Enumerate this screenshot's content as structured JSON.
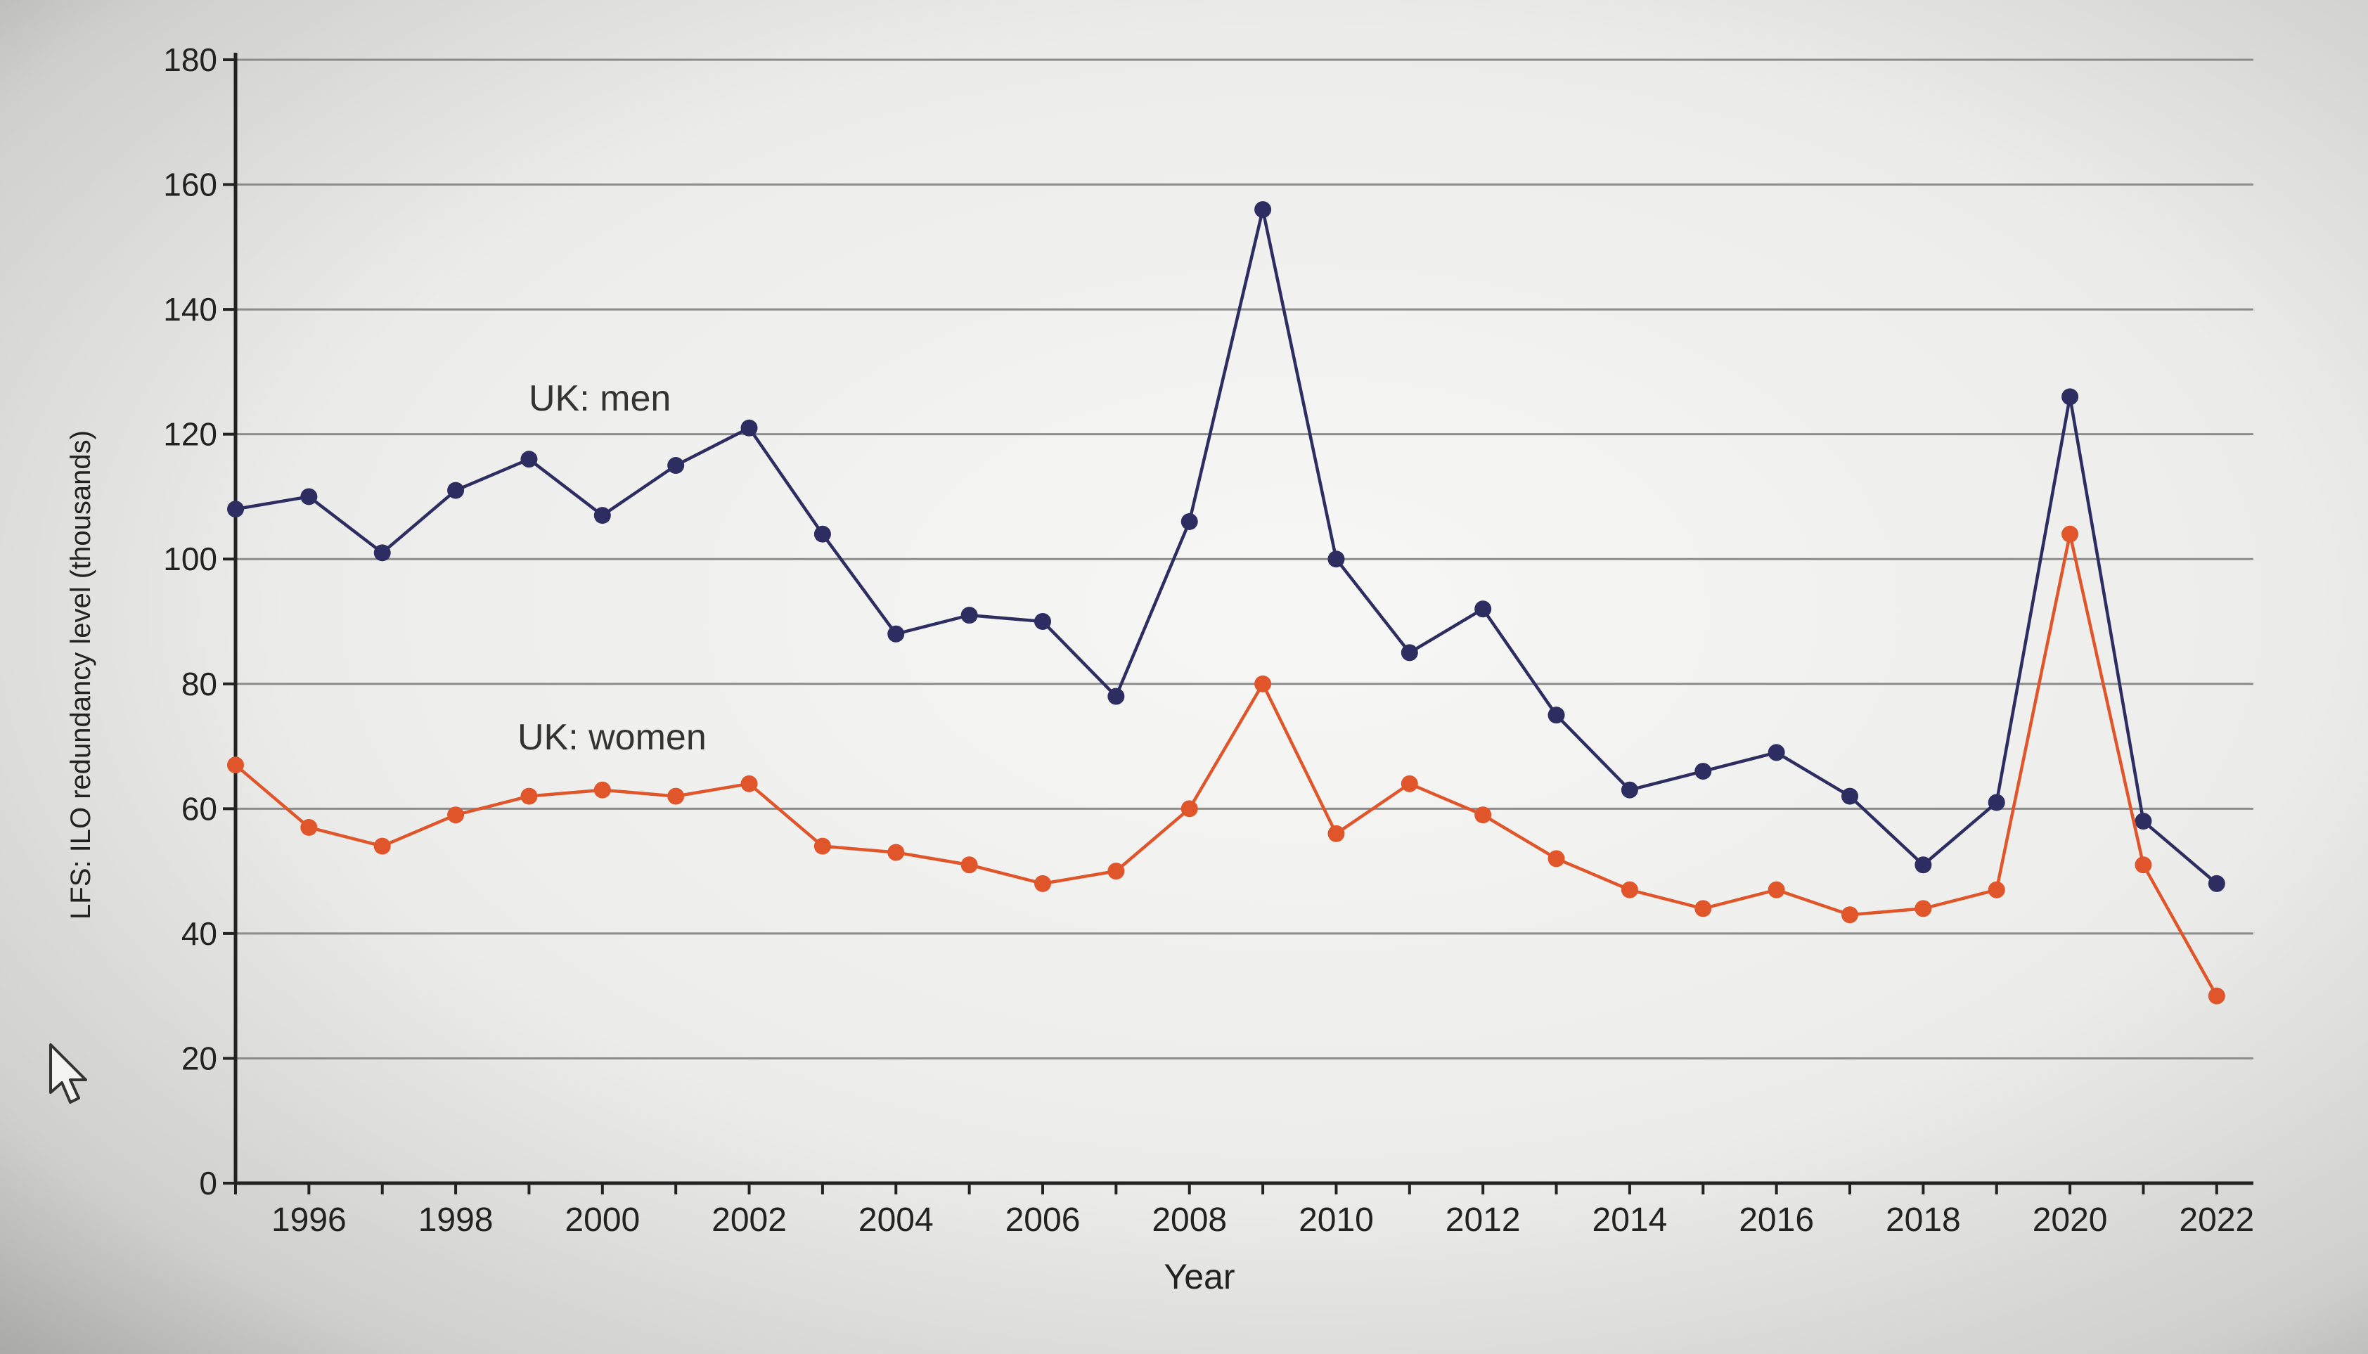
{
  "chart_data": {
    "type": "line",
    "title": "",
    "xlabel": "Year",
    "ylabel": "LFS: ILO redundancy level (thousands)",
    "x": [
      1995,
      1996,
      1997,
      1998,
      1999,
      2000,
      2001,
      2002,
      2003,
      2004,
      2005,
      2006,
      2007,
      2008,
      2009,
      2010,
      2011,
      2012,
      2013,
      2014,
      2015,
      2016,
      2017,
      2018,
      2019,
      2020,
      2021,
      2022
    ],
    "xticks": [
      "1996",
      "1998",
      "2000",
      "2002",
      "2004",
      "2006",
      "2008",
      "2010",
      "2012",
      "2014",
      "2016",
      "2018",
      "2020",
      "2022"
    ],
    "yticks": [
      "0",
      "20",
      "40",
      "60",
      "80",
      "100",
      "120",
      "140",
      "160",
      "180"
    ],
    "ylim": [
      0,
      180
    ],
    "xlim": [
      1995,
      2022.5
    ],
    "grid": true,
    "series": [
      {
        "name": "UK: men",
        "color": "#2d2d62",
        "values": [
          108,
          110,
          101,
          111,
          116,
          107,
          115,
          121,
          104,
          88,
          91,
          90,
          78,
          106,
          156,
          100,
          85,
          92,
          75,
          63,
          66,
          69,
          62,
          51,
          61,
          126,
          58,
          48
        ]
      },
      {
        "name": "UK: women",
        "color": "#e0552a",
        "values": [
          67,
          57,
          54,
          59,
          62,
          63,
          62,
          64,
          54,
          53,
          51,
          48,
          50,
          60,
          80,
          56,
          64,
          59,
          52,
          47,
          44,
          47,
          43,
          44,
          47,
          104,
          51,
          30
        ]
      }
    ]
  }
}
